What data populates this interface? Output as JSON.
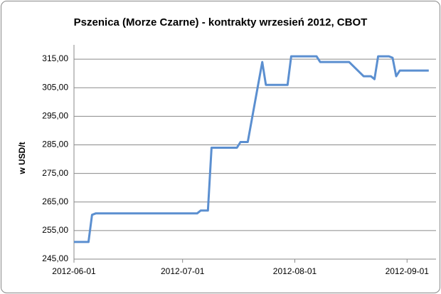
{
  "chart_data": {
    "type": "line",
    "title": "Pszenica (Morze Czarne) - kontrakty wrzesień 2012, CBOT",
    "y_label": "w USD/t",
    "color": "#5b8fd0",
    "grid": true,
    "x": [
      "2012-06-01",
      "2012-06-05",
      "2012-06-06",
      "2012-06-07",
      "2012-07-05",
      "2012-07-06",
      "2012-07-08",
      "2012-07-09",
      "2012-07-16",
      "2012-07-17",
      "2012-07-19",
      "2012-07-23",
      "2012-07-24",
      "2012-07-30",
      "2012-07-31",
      "2012-08-07",
      "2012-08-08",
      "2012-08-16",
      "2012-08-20",
      "2012-08-22",
      "2012-08-23",
      "2012-08-24",
      "2012-08-27",
      "2012-08-28",
      "2012-08-29",
      "2012-08-30",
      "2012-09-07"
    ],
    "values": [
      251,
      251,
      260.5,
      261,
      261,
      262,
      262,
      284,
      284,
      286,
      286,
      314,
      306,
      306,
      316,
      316,
      314,
      314,
      309,
      309,
      308,
      316,
      316,
      315.5,
      309,
      311,
      311
    ],
    "xlim": [
      "2012-06-01",
      "2012-09-09"
    ],
    "xticks": [
      "2012-06-01",
      "2012-07-01",
      "2012-08-01",
      "2012-09-01"
    ],
    "ylim": [
      245,
      320
    ],
    "yticks": [
      {
        "value": 245,
        "label": "245,00"
      },
      {
        "value": 255,
        "label": "255,00"
      },
      {
        "value": 265,
        "label": "265,00"
      },
      {
        "value": 275,
        "label": "275,00"
      },
      {
        "value": 285,
        "label": "285,00"
      },
      {
        "value": 295,
        "label": "295,00"
      },
      {
        "value": 305,
        "label": "305,00"
      },
      {
        "value": 315,
        "label": "315,00"
      }
    ]
  }
}
